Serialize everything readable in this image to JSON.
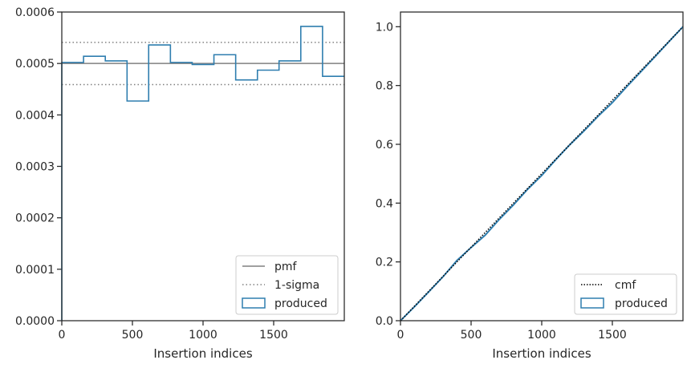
{
  "colors": {
    "produced": "#2f7eaf",
    "pmf": "#808080",
    "sigma": "#808080",
    "cmf": "#000000",
    "axes": "#262626"
  },
  "chart_data": [
    {
      "type": "histogram",
      "xlabel": "Insertion indices",
      "ylabel": "",
      "xlim": [
        0,
        2000
      ],
      "ylim": [
        0,
        0.0006
      ],
      "xticks": [
        0,
        500,
        1000,
        1500
      ],
      "xtick_labels": [
        "0",
        "500",
        "1000",
        "1500"
      ],
      "yticks": [
        0,
        0.0001,
        0.0002,
        0.0003,
        0.0004,
        0.0005,
        0.0006
      ],
      "ytick_labels": [
        "0.0000",
        "0.0001",
        "0.0002",
        "0.0003",
        "0.0004",
        "0.0005",
        "0.0006"
      ],
      "grid": false,
      "legend_placement": "lower right",
      "legend": [
        "pmf",
        "1-sigma",
        "produced"
      ],
      "pmf": 0.0005,
      "sigma_band": [
        0.000459,
        0.000541
      ],
      "bin_edges": [
        0,
        154,
        308,
        462,
        615,
        769,
        923,
        1077,
        1231,
        1385,
        1538,
        1692,
        1846,
        2000
      ],
      "values": [
        0.000502,
        0.000514,
        0.000505,
        0.000427,
        0.000536,
        0.000502,
        0.000498,
        0.000517,
        0.000468,
        0.000487,
        0.000505,
        0.000572,
        0.000475
      ]
    },
    {
      "type": "line",
      "xlabel": "Insertion indices",
      "ylabel": "",
      "xlim": [
        0,
        2000
      ],
      "ylim": [
        0,
        1.05
      ],
      "xticks": [
        0,
        500,
        1000,
        1500
      ],
      "xtick_labels": [
        "0",
        "500",
        "1000",
        "1500"
      ],
      "yticks": [
        0,
        0.2,
        0.4,
        0.6,
        0.8,
        1.0
      ],
      "ytick_labels": [
        "0.0",
        "0.2",
        "0.4",
        "0.6",
        "0.8",
        "1.0"
      ],
      "grid": false,
      "legend_placement": "lower right",
      "legend": [
        "cmf",
        "produced"
      ],
      "cmf": {
        "x": [
          0,
          2000
        ],
        "y": [
          0,
          1.0
        ]
      },
      "produced": {
        "x": [
          0,
          100,
          200,
          300,
          400,
          500,
          600,
          700,
          800,
          900,
          1000,
          1100,
          1200,
          1300,
          1400,
          1500,
          1600,
          1700,
          1800,
          1900,
          2000
        ],
        "y": [
          0,
          0.048,
          0.098,
          0.149,
          0.205,
          0.249,
          0.291,
          0.345,
          0.394,
          0.447,
          0.494,
          0.548,
          0.599,
          0.646,
          0.696,
          0.742,
          0.795,
          0.846,
          0.897,
          0.949,
          1.0
        ]
      }
    }
  ]
}
